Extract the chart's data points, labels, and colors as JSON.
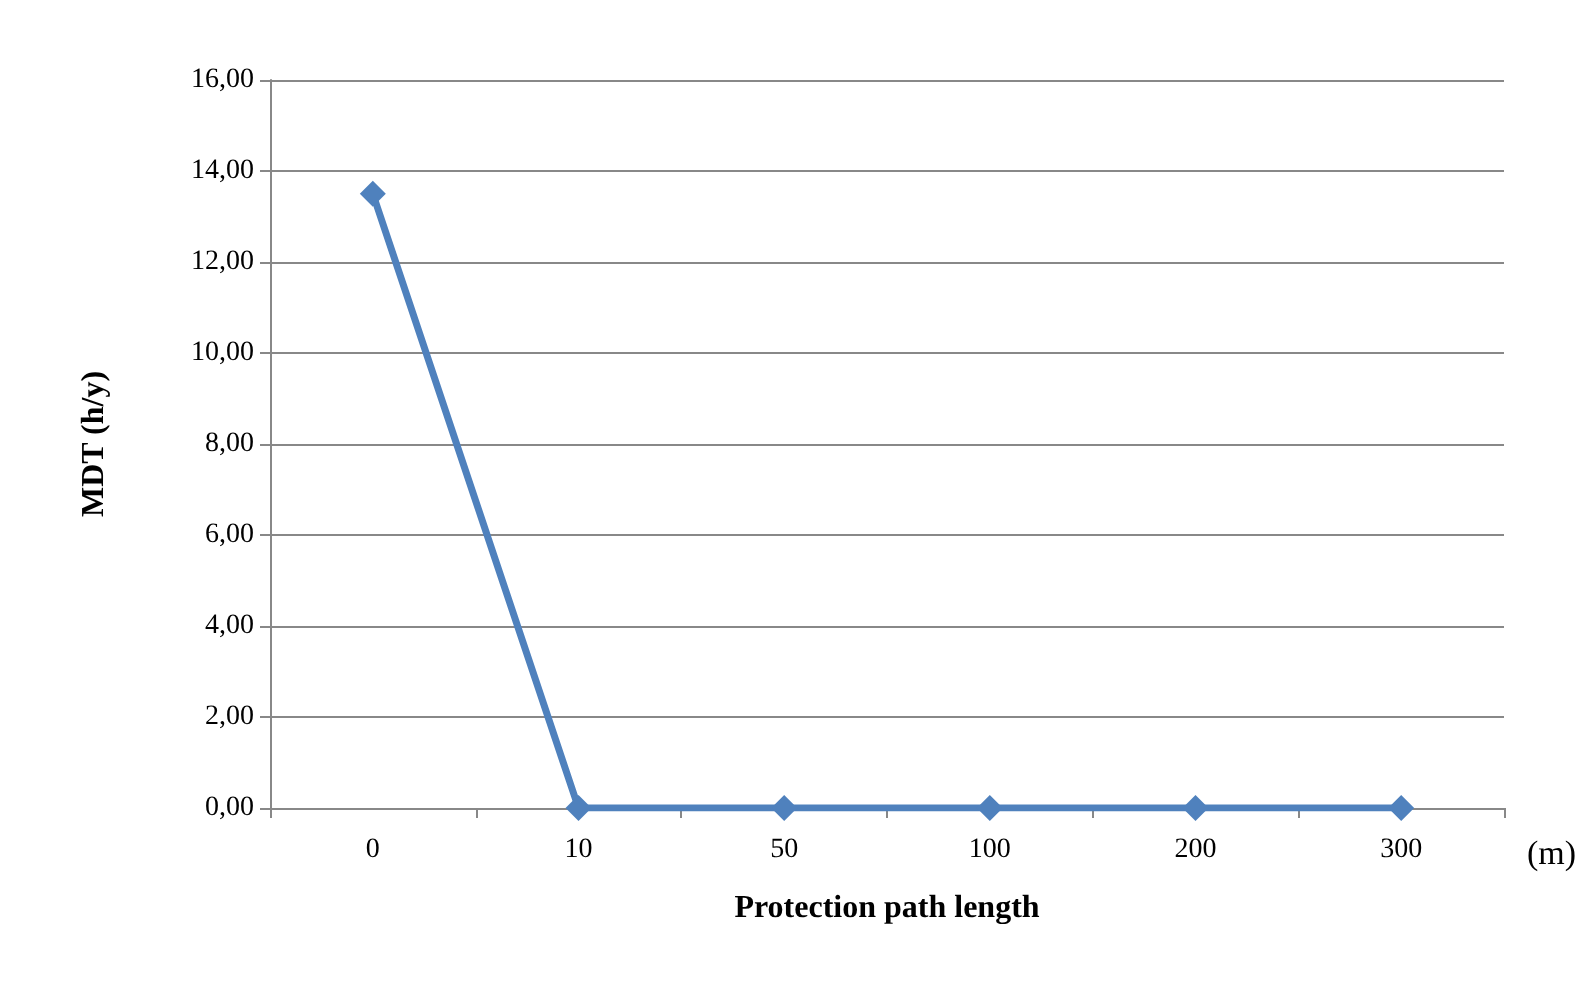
{
  "chart_data": {
    "type": "line",
    "xlabel": "Protection path length",
    "ylabel": "MDT (h/y)",
    "annotations": [
      "(m)"
    ],
    "categories": [
      "0",
      "10",
      "50",
      "100",
      "200",
      "300"
    ],
    "series": [
      {
        "color": "#4f81bd",
        "values": [
          13.5,
          0,
          0,
          0,
          0,
          0
        ]
      }
    ],
    "ylim": [
      0,
      16
    ],
    "yticks": [
      {
        "value": 0,
        "label": "0,00"
      },
      {
        "value": 2,
        "label": "2,00"
      },
      {
        "value": 4,
        "label": "4,00"
      },
      {
        "value": 6,
        "label": "6,00"
      },
      {
        "value": 8,
        "label": "8,00"
      },
      {
        "value": 10,
        "label": "10,00"
      },
      {
        "value": 12,
        "label": "12,00"
      },
      {
        "value": 14,
        "label": "14,00"
      },
      {
        "value": 16,
        "label": "16,00"
      }
    ],
    "grid": "y",
    "marker": "diamond",
    "line_style": "solid"
  }
}
